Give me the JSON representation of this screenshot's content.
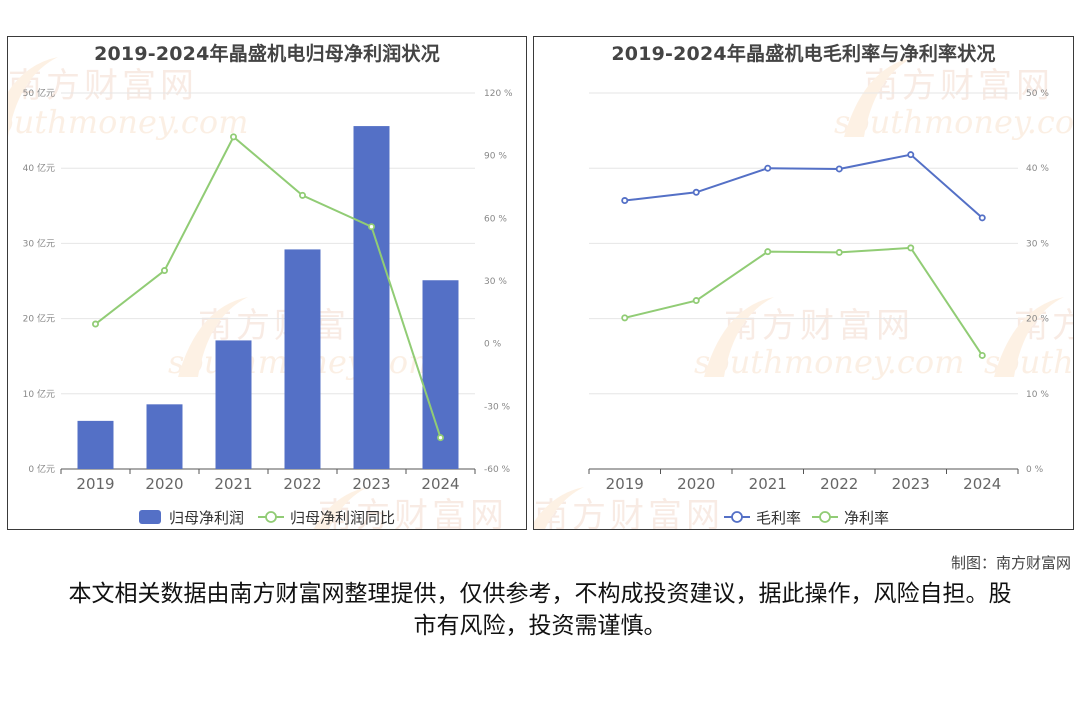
{
  "chart_data": [
    {
      "type": "bar",
      "title": "2019-2024年晶盛机电归母净利润状况",
      "categories": [
        "2019",
        "2020",
        "2021",
        "2022",
        "2023",
        "2024"
      ],
      "series": [
        {
          "name": "归母净利润",
          "type": "bar",
          "axis": "left",
          "color": "#5470c6",
          "values": [
            6.4,
            8.6,
            17.1,
            29.2,
            45.6,
            25.1
          ]
        },
        {
          "name": "归母净利润同比",
          "type": "line",
          "axis": "right",
          "color": "#91cc75",
          "values": [
            9.4,
            35.0,
            99.0,
            71.0,
            56.0,
            -45.0
          ]
        }
      ],
      "y_left": {
        "min": 0,
        "max": 50,
        "ticks": [
          "0 亿元",
          "10 亿元",
          "20 亿元",
          "30 亿元",
          "40 亿元",
          "50 亿元"
        ]
      },
      "y_right": {
        "min": -60,
        "max": 120,
        "ticks": [
          "-60 %",
          "-30 %",
          "0 %",
          "30 %",
          "60 %",
          "90 %",
          "120 %"
        ]
      },
      "grid": true,
      "legend": "bottom"
    },
    {
      "type": "line",
      "title": "2019-2024年晶盛机电毛利率与净利率状况",
      "categories": [
        "2019",
        "2020",
        "2021",
        "2022",
        "2023",
        "2024"
      ],
      "series": [
        {
          "name": "毛利率",
          "color": "#5470c6",
          "values": [
            35.7,
            36.8,
            40.0,
            39.9,
            41.8,
            33.4
          ]
        },
        {
          "name": "净利率",
          "color": "#91cc75",
          "values": [
            20.1,
            22.4,
            28.9,
            28.8,
            29.4,
            15.1
          ]
        }
      ],
      "y_right": {
        "min": 0,
        "max": 50,
        "ticks": [
          "0 %",
          "10 %",
          "20 %",
          "30 %",
          "40 %",
          "50 %"
        ]
      },
      "grid": true,
      "legend": "bottom"
    }
  ],
  "watermark": {
    "cn": "南方财富网",
    "en": "southmoney.com"
  },
  "credit": "制图：南方财富网",
  "disclaimer": "本文相关数据由南方财富网整理提供，仅供参考，不构成投资建议，据此操作，风险自担。股市有风险，投资需谨慎。"
}
